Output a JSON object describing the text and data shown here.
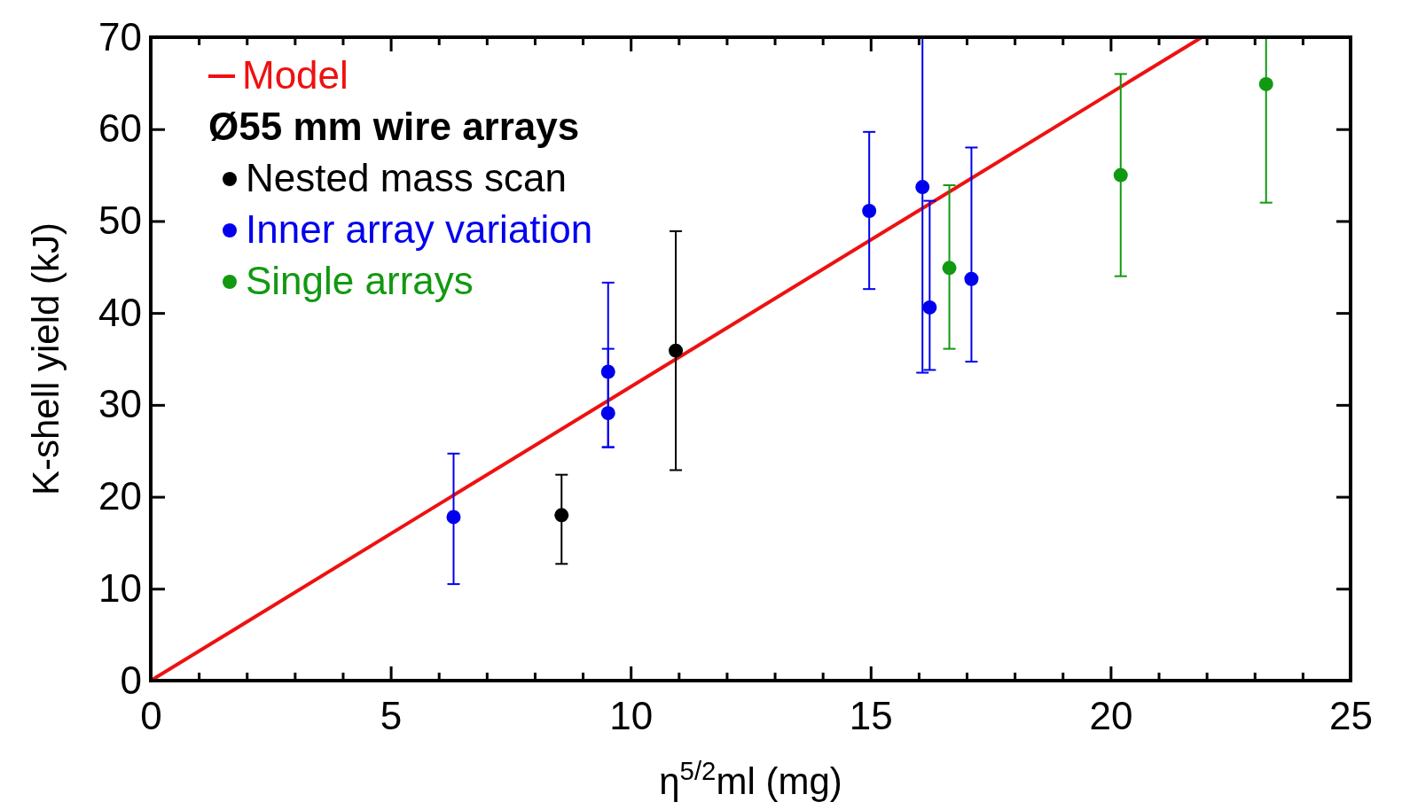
{
  "chart_data": {
    "type": "scatter",
    "xlabel": "η$^{5/2}$ml (mg)",
    "ylabel": "K-shell yield (kJ)",
    "legend_title": "Ø55 mm wire arrays",
    "legend": "top left",
    "grid": false,
    "marker": "circle",
    "xlim": [
      0,
      25
    ],
    "ylim": [
      0,
      70
    ],
    "xticks": [
      0,
      {
        "value": 1,
        "label": null
      },
      {
        "value": 2,
        "label": null
      },
      {
        "value": 3,
        "label": null
      },
      {
        "value": 4,
        "label": null
      },
      5,
      {
        "value": 6,
        "label": null
      },
      {
        "value": 7,
        "label": null
      },
      {
        "value": 8,
        "label": null
      },
      {
        "value": 9,
        "label": null
      },
      10,
      {
        "value": 11,
        "label": null
      },
      {
        "value": 12,
        "label": null
      },
      {
        "value": 13,
        "label": null
      },
      {
        "value": 14,
        "label": null
      },
      15,
      {
        "value": 16,
        "label": null
      },
      {
        "value": 17,
        "label": null
      },
      {
        "value": 18,
        "label": null
      },
      {
        "value": 19,
        "label": null
      },
      20,
      {
        "value": 21,
        "label": null
      },
      {
        "value": 22,
        "label": null
      },
      {
        "value": 23,
        "label": null
      },
      {
        "value": 24,
        "label": null
      },
      25
    ],
    "yticks": [
      0,
      10,
      20,
      30,
      40,
      50,
      60,
      70
    ],
    "series": [
      {
        "name": "Model",
        "type": "line",
        "marker": "none",
        "color": "#ee1111",
        "x": [
          0,
          21.9
        ],
        "values": [
          0,
          70
        ]
      },
      {
        "name": "Nested mass scan",
        "color": "#000000",
        "x": [
          8.56,
          10.94
        ],
        "values": [
          18.0,
          35.9
        ],
        "errors": [
          [
            12.7,
            22.4
          ],
          [
            22.9,
            48.9
          ]
        ]
      },
      {
        "name": "Inner array variation",
        "color": "#0000ee",
        "x": [
          6.31,
          9.53,
          9.53,
          14.97,
          16.08,
          16.23,
          17.1
        ],
        "values": [
          17.8,
          33.6,
          29.1,
          51.1,
          53.7,
          40.6,
          43.7
        ],
        "errors": [
          [
            10.5,
            24.7
          ],
          [
            25.4,
            43.3
          ],
          [
            25.4,
            36.1
          ],
          [
            42.6,
            59.7
          ],
          [
            33.5,
            70
          ],
          [
            33.8,
            52.2
          ],
          [
            34.7,
            58.0
          ]
        ]
      },
      {
        "name": "Single arrays",
        "color": "#119911",
        "x": [
          16.64,
          20.21,
          23.24
        ],
        "values": [
          44.9,
          55.0,
          64.9
        ],
        "errors": [
          [
            36.1,
            53.9
          ],
          [
            44.0,
            66.0
          ],
          [
            52.0,
            70
          ]
        ]
      }
    ]
  }
}
